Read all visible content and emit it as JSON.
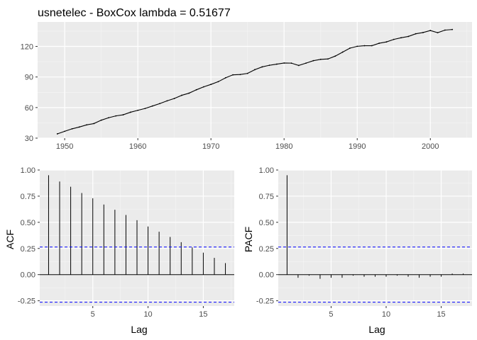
{
  "chart_data": [
    {
      "type": "line",
      "title": "usnetelec - BoxCox lambda =  0.51677",
      "xlabel": "",
      "ylabel": "",
      "xlim": [
        1946.3,
        2005.7
      ],
      "ylim": [
        30,
        144
      ],
      "x_ticks": [
        1950,
        1960,
        1970,
        1980,
        1990,
        2000
      ],
      "y_ticks": [
        30,
        60,
        90,
        120
      ],
      "grid": true,
      "series": [
        {
          "x": [
            1949,
            1950,
            1951,
            1952,
            1953,
            1954,
            1955,
            1956,
            1957,
            1958,
            1959,
            1960,
            1961,
            1962,
            1963,
            1964,
            1965,
            1966,
            1967,
            1968,
            1969,
            1970,
            1971,
            1972,
            1973,
            1974,
            1975,
            1976,
            1977,
            1978,
            1979,
            1980,
            1981,
            1982,
            1983,
            1984,
            1985,
            1986,
            1987,
            1988,
            1989,
            1990,
            1991,
            1992,
            1993,
            1994,
            1995,
            1996,
            1997,
            1998,
            1999,
            2000,
            2001,
            2002,
            2003
          ],
          "values": [
            34.2,
            36.7,
            39.1,
            40.9,
            43.0,
            44.3,
            47.6,
            50.0,
            51.8,
            52.9,
            55.4,
            57.3,
            59.1,
            61.5,
            63.9,
            66.6,
            68.9,
            72.0,
            74.1,
            77.4,
            80.3,
            82.7,
            85.4,
            89.2,
            92.1,
            92.4,
            93.5,
            97.2,
            99.9,
            101.5,
            102.6,
            103.7,
            103.6,
            101.3,
            103.6,
            106.0,
            107.3,
            107.7,
            110.5,
            114.4,
            118.3,
            120.1,
            120.7,
            120.7,
            123.1,
            124.4,
            126.9,
            128.5,
            129.8,
            132.4,
            133.6,
            135.6,
            133.5,
            136.0,
            136.6
          ]
        }
      ]
    },
    {
      "type": "bar",
      "title": "",
      "xlabel": "Lag",
      "ylabel": "ACF",
      "xlim": [
        0.2,
        17.8
      ],
      "ylim": [
        -0.3,
        1.0
      ],
      "x_ticks": [
        5,
        10,
        15
      ],
      "y_ticks": [
        -0.25,
        0,
        0.25,
        0.5,
        0.75,
        1
      ],
      "y_tick_labels": [
        "-0.25",
        "0.00",
        "0.25",
        "0.50",
        "0.75",
        "1.00"
      ],
      "grid": true,
      "confidence_bounds": [
        -0.264,
        0.264
      ],
      "categories": [
        1,
        2,
        3,
        4,
        5,
        6,
        7,
        8,
        9,
        10,
        11,
        12,
        13,
        14,
        15,
        16,
        17
      ],
      "values": [
        0.95,
        0.89,
        0.84,
        0.78,
        0.73,
        0.67,
        0.62,
        0.57,
        0.52,
        0.46,
        0.41,
        0.36,
        0.31,
        0.26,
        0.21,
        0.16,
        0.11
      ]
    },
    {
      "type": "bar",
      "title": "",
      "xlabel": "Lag",
      "ylabel": "PACF",
      "xlim": [
        0.2,
        17.8
      ],
      "ylim": [
        -0.3,
        1.0
      ],
      "x_ticks": [
        5,
        10,
        15
      ],
      "y_ticks": [
        -0.25,
        0,
        0.25,
        0.5,
        0.75,
        1
      ],
      "y_tick_labels": [
        "-0.25",
        "0.00",
        "0.25",
        "0.50",
        "0.75",
        "1.00"
      ],
      "grid": true,
      "confidence_bounds": [
        -0.264,
        0.264
      ],
      "categories": [
        1,
        2,
        3,
        4,
        5,
        6,
        7,
        8,
        9,
        10,
        11,
        12,
        13,
        14,
        15,
        16,
        17
      ],
      "values": [
        0.95,
        -0.03,
        -0.01,
        -0.04,
        -0.03,
        -0.03,
        -0.01,
        -0.02,
        -0.02,
        -0.02,
        -0.01,
        -0.02,
        -0.03,
        -0.02,
        -0.02,
        0.01,
        0.01
      ]
    }
  ],
  "colors": {
    "panel_bg": "#ebebeb",
    "grid_major": "#ffffff",
    "grid_minor": "#f5f5f5",
    "line": "#000000",
    "confidence_line": "#0000ff",
    "tick_text": "#4d4d4d"
  }
}
